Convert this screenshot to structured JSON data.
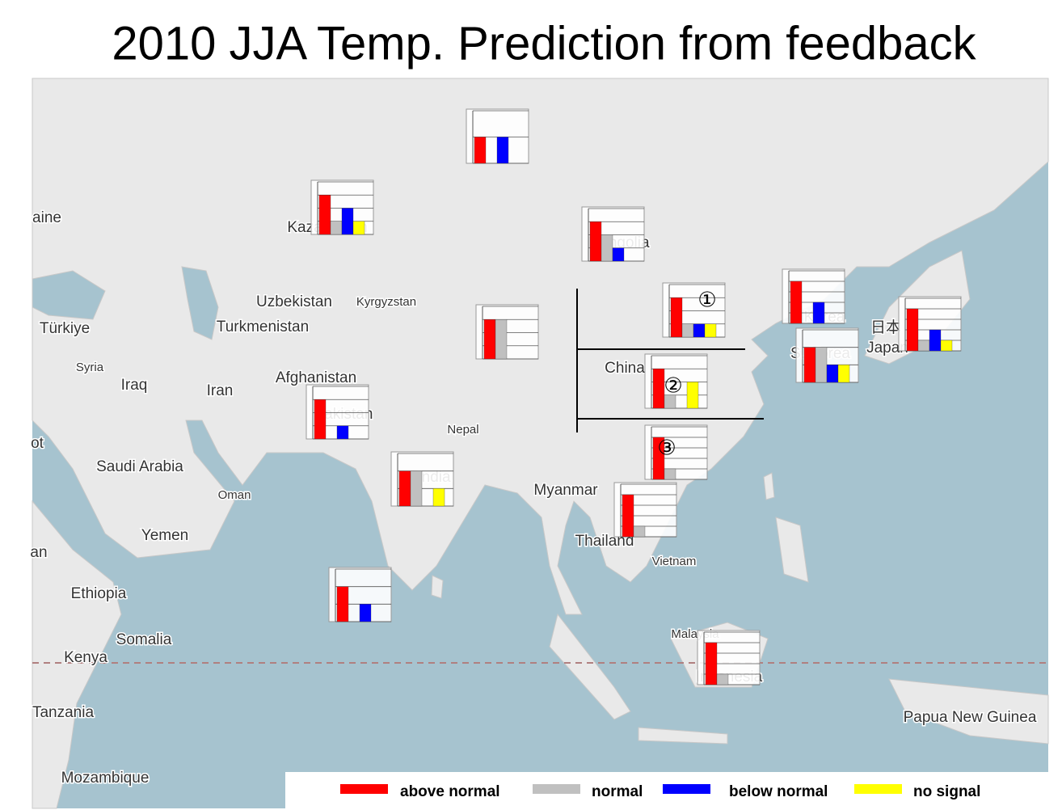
{
  "title": "2010 JJA Temp. Prediction from feedback",
  "legend": [
    {
      "name": "above normal",
      "color": "#ff0000"
    },
    {
      "name": "normal",
      "color": "#c0c0c0"
    },
    {
      "name": "below normal",
      "color": "#0000ff"
    },
    {
      "name": "no signal",
      "color": "#ffff00"
    }
  ],
  "labels": [
    "aine",
    "Kazakhstan",
    "Mongolia",
    "Uzbekistan",
    "Kyrgyzstan",
    "Türkiye",
    "Turkmenistan",
    "Syria",
    "Iraq",
    "Iran",
    "Afghanistan",
    "Pakistan",
    "Nepal",
    "China",
    "Korea",
    "S. Korea",
    "日本",
    "Japan",
    "Saudi Arabia",
    "Oman",
    "Yemen",
    "India",
    "Myanmar",
    "Thailand",
    "Vietnam",
    "Malaysia",
    "Indonesia",
    "Ethiopia",
    "Somalia",
    "Kenya",
    "Tanzania",
    "Mozambique",
    "Papua New Guinea",
    "ot",
    "an"
  ],
  "regions": [
    "①",
    "②",
    "③"
  ],
  "charts": [
    {
      "ylim": [
        0,
        2
      ],
      "yticks": [
        0,
        1,
        2
      ],
      "values": [
        1,
        0,
        1,
        0
      ]
    },
    {
      "ylim": [
        0,
        4
      ],
      "yticks": [
        0,
        1,
        2,
        3,
        4
      ],
      "values": [
        3,
        1,
        2,
        1
      ]
    },
    {
      "ylim": [
        0,
        4
      ],
      "yticks": [
        0,
        1,
        2,
        3,
        4
      ],
      "values": [
        3,
        2,
        1,
        0
      ]
    },
    {
      "ylim": [
        0,
        4
      ],
      "yticks": [
        0,
        1,
        2,
        3,
        4
      ],
      "values": [
        3,
        3,
        0,
        0
      ]
    },
    {
      "ylim": [
        0,
        4
      ],
      "yticks": [
        0,
        1,
        2,
        3,
        4
      ],
      "values": [
        3,
        1,
        1,
        1
      ]
    },
    {
      "ylim": [
        0,
        5
      ],
      "yticks": [
        0,
        1,
        2,
        3,
        4,
        5
      ],
      "values": [
        4,
        0,
        2,
        0
      ]
    },
    {
      "ylim": [
        0,
        3
      ],
      "yticks": [
        0,
        1,
        2,
        3
      ],
      "values": [
        2,
        2,
        1,
        1
      ]
    },
    {
      "ylim": [
        0,
        5
      ],
      "yticks": [
        0,
        1,
        2,
        3,
        4,
        5
      ],
      "values": [
        4,
        1,
        2,
        1
      ]
    },
    {
      "ylim": [
        0,
        4
      ],
      "yticks": [
        0,
        1,
        2,
        3,
        4
      ],
      "values": [
        3,
        1,
        0,
        2
      ]
    },
    {
      "ylim": [
        0,
        5
      ],
      "yticks": [
        0,
        1,
        2,
        3,
        4,
        5
      ],
      "values": [
        4,
        1,
        0,
        0
      ]
    },
    {
      "ylim": [
        0,
        4
      ],
      "yticks": [
        0,
        1,
        2,
        3,
        4
      ],
      "values": [
        3,
        0,
        1,
        0
      ]
    },
    {
      "ylim": [
        0,
        3
      ],
      "yticks": [
        0,
        1,
        2,
        3
      ],
      "values": [
        2,
        2,
        0,
        1
      ]
    },
    {
      "ylim": [
        0,
        5
      ],
      "yticks": [
        0,
        1,
        2,
        3,
        4,
        5
      ],
      "values": [
        4,
        1,
        0,
        0
      ]
    },
    {
      "ylim": [
        0,
        3
      ],
      "yticks": [
        0,
        1,
        2,
        3
      ],
      "values": [
        2,
        0,
        1,
        0
      ]
    },
    {
      "ylim": [
        0,
        5
      ],
      "yticks": [
        0,
        1,
        2,
        3,
        4,
        5
      ],
      "values": [
        4,
        1,
        0,
        0
      ]
    }
  ]
}
